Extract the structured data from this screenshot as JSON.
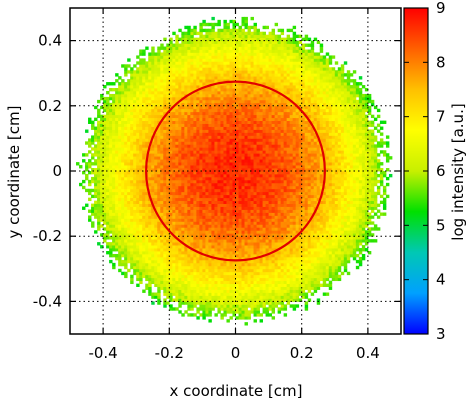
{
  "chart_data": {
    "type": "heatmap",
    "title": "",
    "xlabel": "x coordinate [cm]",
    "ylabel": "y coordinate [cm]",
    "xlim": [
      -0.5,
      0.5
    ],
    "ylim": [
      -0.5,
      0.5
    ],
    "x_ticks": [
      -0.4,
      -0.2,
      0,
      0.2,
      0.4
    ],
    "x_tick_labels": [
      "-0.4",
      "-0.2",
      "0",
      "0.2",
      "0.4"
    ],
    "y_ticks": [
      -0.4,
      -0.2,
      0,
      0.2,
      0.4
    ],
    "y_tick_labels": [
      "-0.4",
      "-0.2",
      "0",
      "0.2",
      "0.4"
    ],
    "grid": "dotted",
    "colorbar": {
      "label": "log intensity [a.u.]",
      "range": [
        3,
        9
      ],
      "ticks": [
        3,
        4,
        5,
        6,
        7,
        8,
        9
      ],
      "tick_labels": [
        "3",
        "4",
        "5",
        "6",
        "7",
        "8",
        "9"
      ],
      "colormap": [
        "#0000ff",
        "#00a0ff",
        "#00c8b4",
        "#00e000",
        "#c8f000",
        "#ffff00",
        "#ffc000",
        "#ff6000",
        "#ff0000"
      ]
    },
    "distribution": {
      "center": [
        0.0,
        0.0
      ],
      "peak_log_intensity": 8.7,
      "edge_log_intensity": 5.6,
      "edge_radius_cm": 0.45
    },
    "overlay_circle": {
      "center": [
        0.0,
        0.0
      ],
      "radius_cm": 0.27,
      "color": "#e00000"
    }
  }
}
